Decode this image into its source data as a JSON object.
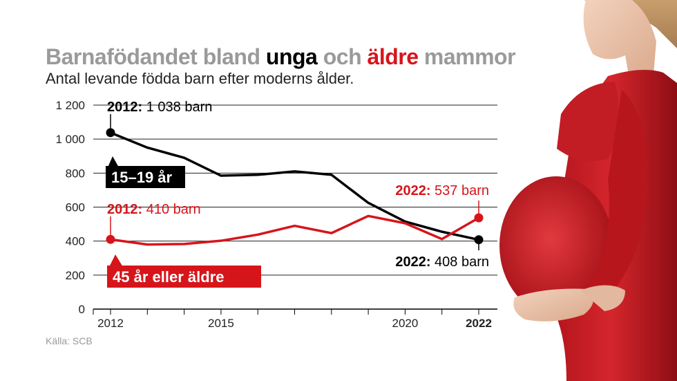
{
  "header": {
    "title_part1": "Barnafödandet bland ",
    "title_young": "unga",
    "title_part2": " och ",
    "title_older": "äldre",
    "title_part3": " mammor",
    "subtitle": "Antal levande födda barn efter moderns ålder."
  },
  "source": "Källa: SCB",
  "colors": {
    "black_series": "#000000",
    "red_series": "#d6151b",
    "grey_title": "#9a9a9a",
    "grid": "#222222"
  },
  "chart_data": {
    "type": "line",
    "x": [
      2012,
      2013,
      2014,
      2015,
      2016,
      2017,
      2018,
      2019,
      2020,
      2021,
      2022
    ],
    "x_tick_labels": [
      {
        "value": 2012,
        "label": "2012",
        "bold": false
      },
      {
        "value": 2015,
        "label": "2015",
        "bold": false
      },
      {
        "value": 2020,
        "label": "2020",
        "bold": false
      },
      {
        "value": 2022,
        "label": "2022",
        "bold": true
      }
    ],
    "y_ticks": [
      {
        "value": 0,
        "label": "0"
      },
      {
        "value": 200,
        "label": "200"
      },
      {
        "value": 400,
        "label": "400"
      },
      {
        "value": 600,
        "label": "600"
      },
      {
        "value": 800,
        "label": "800"
      },
      {
        "value": 1000,
        "label": "1 000"
      },
      {
        "value": 1200,
        "label": "1 200"
      }
    ],
    "ylim": [
      0,
      1200
    ],
    "grid": true,
    "series": [
      {
        "name": "15–19 år",
        "color": "#000000",
        "values": [
          1038,
          950,
          890,
          785,
          790,
          810,
          790,
          625,
          515,
          455,
          408
        ],
        "start_annotation": {
          "bold": "2012:",
          "rest": " 1 038 barn"
        },
        "end_annotation": {
          "bold": "2022:",
          "rest": " 408 barn"
        }
      },
      {
        "name": "45 år eller äldre",
        "color": "#d6151b",
        "values": [
          410,
          380,
          383,
          402,
          438,
          490,
          447,
          548,
          505,
          412,
          537
        ],
        "start_annotation": {
          "bold": "2012:",
          "rest": " 410 barn"
        },
        "end_annotation": {
          "bold": "2022:",
          "rest": " 537 barn"
        }
      }
    ]
  }
}
